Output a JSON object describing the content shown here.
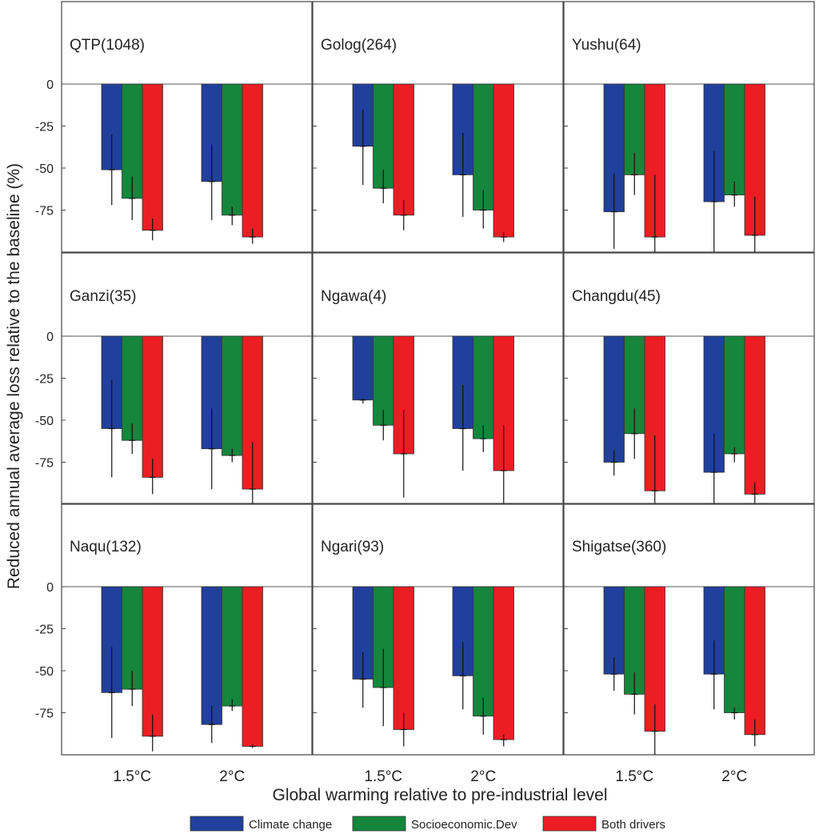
{
  "chart_data": {
    "type": "bar",
    "ylabel": "Reduced annual average loss relative to the baseline (%)",
    "xlabel": "Global warming relative to pre-industrial level",
    "categories": [
      "1.5°C",
      "2°C"
    ],
    "yticks": [
      "0",
      "-25",
      "-50",
      "-75"
    ],
    "ylim": [
      -100,
      0
    ],
    "legend_position": "bottom-center",
    "series": [
      {
        "name": "Climate change",
        "color": "#213f9c"
      },
      {
        "name": "Socioeconomic.Dev",
        "color": "#15863c"
      },
      {
        "name": "Both drivers",
        "color": "#ed1d24"
      }
    ],
    "panels": [
      {
        "title": "QTP(1048)",
        "values": [
          [
            -51,
            -68,
            -87
          ],
          [
            -58,
            -78,
            -91
          ]
        ],
        "errors": [
          [
            [
              -72,
              -30
            ],
            [
              -81,
              -55
            ],
            [
              -93,
              -80
            ]
          ],
          [
            [
              -81,
              -36
            ],
            [
              -84,
              -73
            ],
            [
              -95,
              -86
            ]
          ]
        ]
      },
      {
        "title": "Golog(264)",
        "values": [
          [
            -37,
            -62,
            -78
          ],
          [
            -54,
            -75,
            -91
          ]
        ],
        "errors": [
          [
            [
              -60,
              -15
            ],
            [
              -71,
              -51
            ],
            [
              -87,
              -69
            ]
          ],
          [
            [
              -79,
              -29
            ],
            [
              -86,
              -63
            ],
            [
              -94,
              -88
            ]
          ]
        ]
      },
      {
        "title": "Yushu(64)",
        "values": [
          [
            -76,
            -54,
            -91
          ],
          [
            -70,
            -66,
            -90
          ]
        ],
        "errors": [
          [
            [
              -98,
              -53
            ],
            [
              -66,
              -41
            ],
            [
              -100,
              -54
            ]
          ],
          [
            [
              -100,
              -40
            ],
            [
              -73,
              -58
            ],
            [
              -100,
              -67
            ]
          ]
        ]
      },
      {
        "title": "Ganzi(35)",
        "values": [
          [
            -55,
            -62,
            -84
          ],
          [
            -67,
            -71,
            -91
          ]
        ],
        "errors": [
          [
            [
              -84,
              -26
            ],
            [
              -70,
              -52
            ],
            [
              -94,
              -73
            ]
          ],
          [
            [
              -91,
              -43
            ],
            [
              -75,
              -67
            ],
            [
              -100,
              -63
            ]
          ]
        ]
      },
      {
        "title": "Ngawa(4)",
        "values": [
          [
            -38,
            -53,
            -70
          ],
          [
            -55,
            -61,
            -80
          ]
        ],
        "errors": [
          [
            [
              -40,
              -37
            ],
            [
              -62,
              -44
            ],
            [
              -96,
              -44
            ]
          ],
          [
            [
              -80,
              -29
            ],
            [
              -69,
              -53
            ],
            [
              -100,
              -53
            ]
          ]
        ]
      },
      {
        "title": "Changdu(45)",
        "values": [
          [
            -75,
            -58,
            -92
          ],
          [
            -81,
            -70,
            -94
          ]
        ],
        "errors": [
          [
            [
              -83,
              -68
            ],
            [
              -73,
              -43
            ],
            [
              -100,
              -59
            ]
          ],
          [
            [
              -100,
              -58
            ],
            [
              -75,
              -66
            ],
            [
              -100,
              -87
            ]
          ]
        ]
      },
      {
        "title": "Naqu(132)",
        "values": [
          [
            -63,
            -61,
            -89
          ],
          [
            -82,
            -71,
            -95
          ]
        ],
        "errors": [
          [
            [
              -90,
              -36
            ],
            [
              -71,
              -50
            ],
            [
              -98,
              -76
            ]
          ],
          [
            [
              -93,
              -71
            ],
            [
              -74,
              -67
            ],
            [
              -96,
              -94
            ]
          ]
        ]
      },
      {
        "title": "Ngari(93)",
        "values": [
          [
            -55,
            -60,
            -85
          ],
          [
            -53,
            -77,
            -91
          ]
        ],
        "errors": [
          [
            [
              -72,
              -39
            ],
            [
              -83,
              -37
            ],
            [
              -95,
              -75
            ]
          ],
          [
            [
              -73,
              -33
            ],
            [
              -88,
              -66
            ],
            [
              -95,
              -88
            ]
          ]
        ]
      },
      {
        "title": "Shigatse(360)",
        "values": [
          [
            -52,
            -64,
            -86
          ],
          [
            -52,
            -75,
            -88
          ]
        ],
        "errors": [
          [
            [
              -62,
              -42
            ],
            [
              -76,
              -51
            ],
            [
              -100,
              -70
            ]
          ],
          [
            [
              -73,
              -32
            ],
            [
              -79,
              -72
            ],
            [
              -95,
              -79
            ]
          ]
        ]
      }
    ]
  }
}
